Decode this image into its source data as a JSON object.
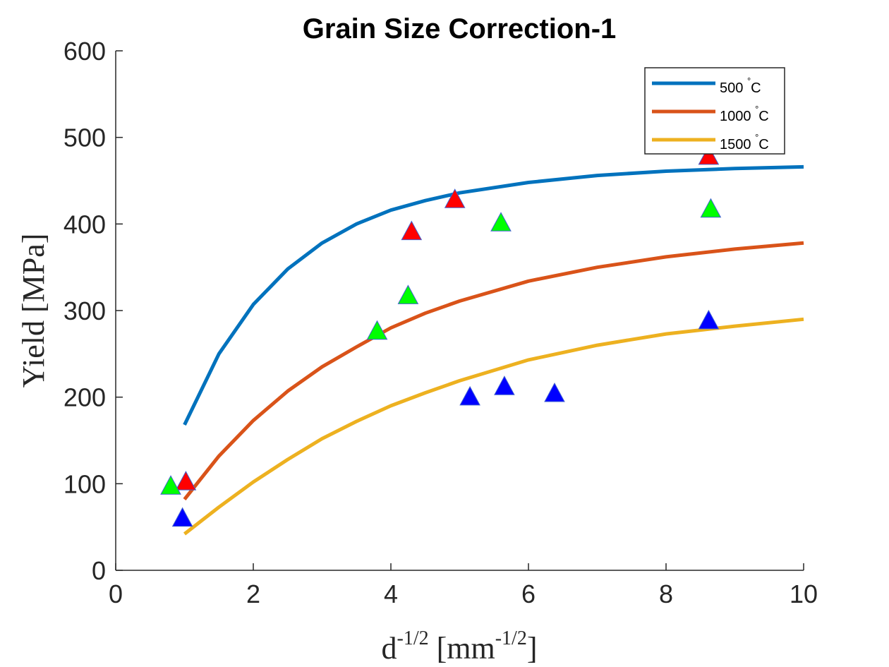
{
  "chart_data": {
    "type": "scatter",
    "title": "Grain Size Correction-1",
    "xlabel": {
      "base": "d",
      "sup": "-1/2",
      "bracket_open": " [mm",
      "bracket_sup": "-1/2",
      "bracket_close": "]"
    },
    "ylabel": "Yield [MPa]",
    "xlim": [
      0,
      10
    ],
    "ylim": [
      0,
      600
    ],
    "xticks": [
      0,
      2,
      4,
      6,
      8,
      10
    ],
    "yticks": [
      0,
      100,
      200,
      300,
      400,
      500,
      600
    ],
    "grid": false,
    "legend_position": "top-right",
    "curves": [
      {
        "name": "500",
        "unit": "°C",
        "color": "#0072BD",
        "x": [
          1.0,
          1.5,
          2.0,
          2.5,
          3.0,
          3.5,
          4.0,
          4.5,
          5.0,
          6.0,
          7.0,
          8.0,
          9.0,
          10.0
        ],
        "y": [
          168,
          250,
          307,
          348,
          378,
          400,
          416,
          427,
          436,
          448,
          456,
          461,
          464,
          466
        ]
      },
      {
        "name": "1000",
        "unit": "°C",
        "color": "#D95319",
        "x": [
          1.0,
          1.5,
          2.0,
          2.5,
          3.0,
          3.5,
          4.0,
          4.5,
          5.0,
          6.0,
          7.0,
          8.0,
          9.0,
          10.0
        ],
        "y": [
          82,
          132,
          173,
          207,
          235,
          258,
          280,
          297,
          311,
          334,
          350,
          362,
          371,
          378
        ]
      },
      {
        "name": "1500",
        "unit": "°C",
        "color": "#EDB120",
        "x": [
          1.0,
          1.5,
          2.0,
          2.5,
          3.0,
          3.5,
          4.0,
          4.5,
          5.0,
          6.0,
          7.0,
          8.0,
          9.0,
          10.0
        ],
        "y": [
          42,
          73,
          102,
          128,
          152,
          172,
          190,
          205,
          219,
          243,
          260,
          273,
          282,
          290
        ]
      }
    ],
    "markers": [
      {
        "color": "#FF0000",
        "points": [
          [
            1.02,
            101
          ],
          [
            4.3,
            390
          ],
          [
            4.93,
            427
          ],
          [
            8.62,
            477
          ]
        ]
      },
      {
        "color": "#00FF00",
        "points": [
          [
            0.8,
            96
          ],
          [
            3.8,
            275
          ],
          [
            4.25,
            316
          ],
          [
            5.6,
            400
          ],
          [
            8.65,
            416
          ]
        ]
      },
      {
        "color": "#0000FF",
        "points": [
          [
            0.97,
            59
          ],
          [
            5.15,
            199
          ],
          [
            5.65,
            211
          ],
          [
            6.38,
            203
          ],
          [
            8.62,
            287
          ]
        ]
      }
    ]
  }
}
